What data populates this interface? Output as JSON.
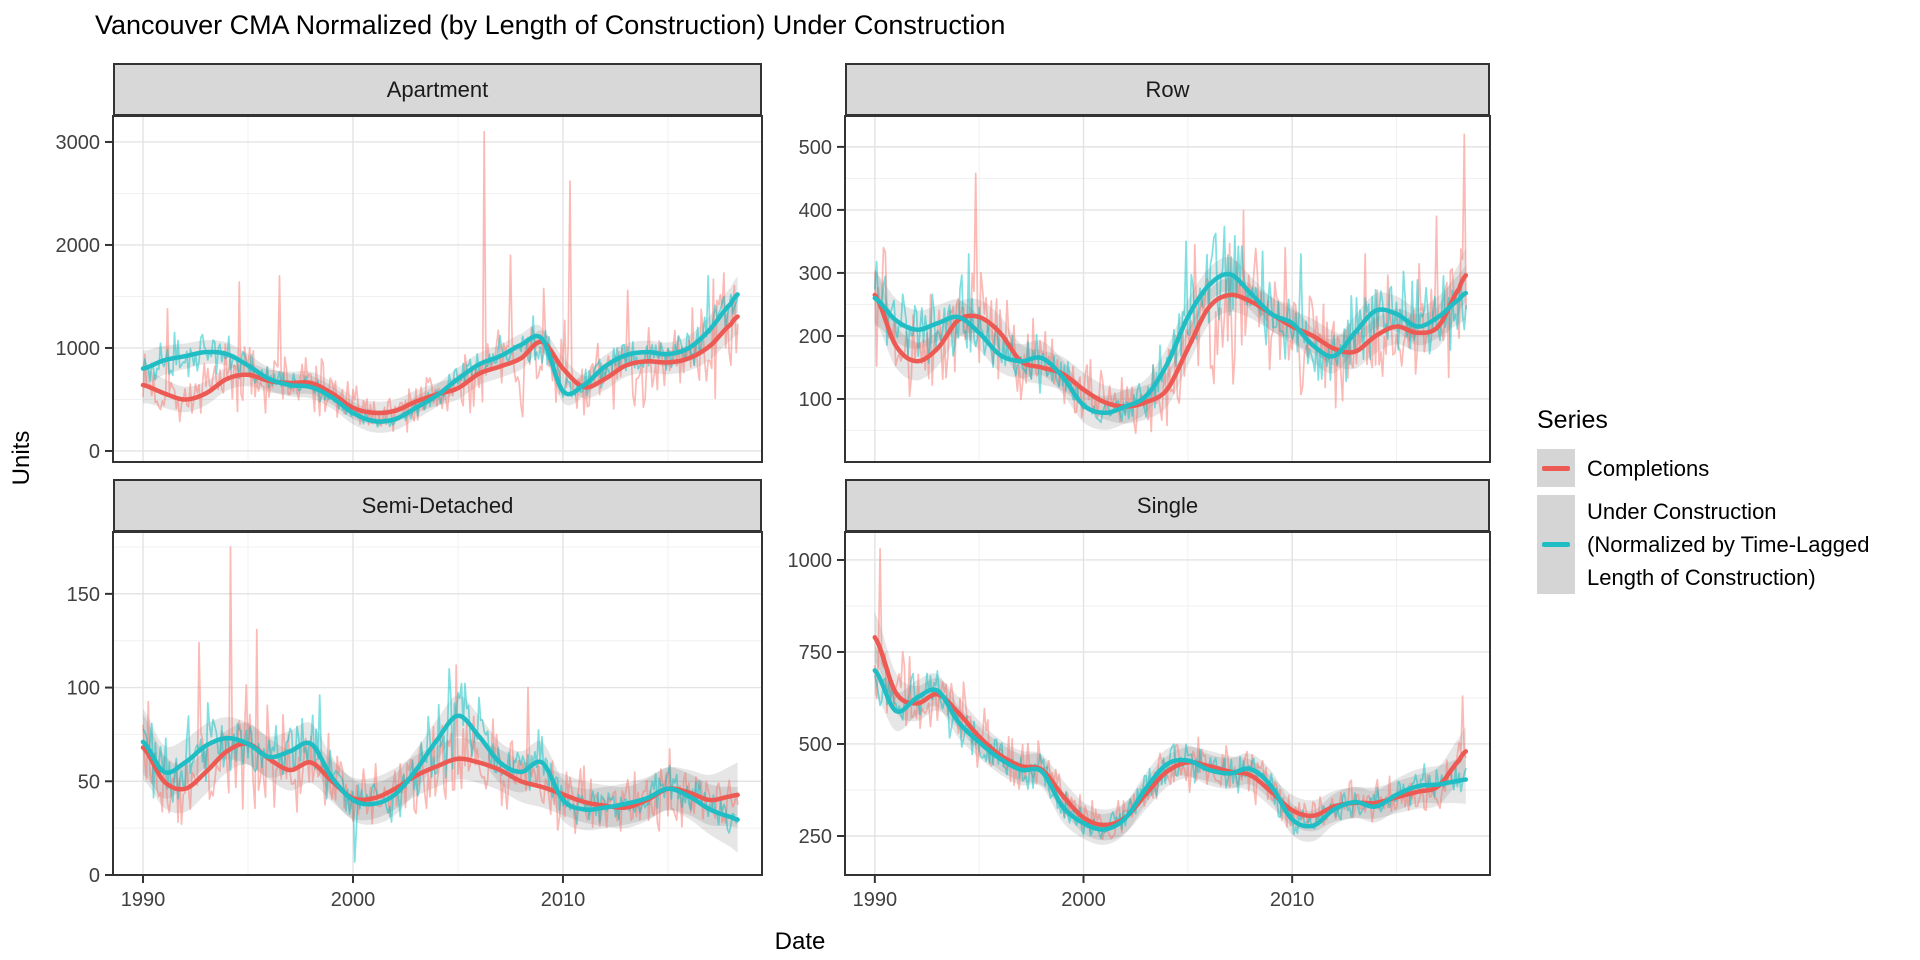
{
  "page": {
    "background": "#FFFFFF"
  },
  "chart_data": {
    "type": "line",
    "title": "Vancouver CMA Normalized (by Length of Construction) Under Construction",
    "xlabel": "Date",
    "ylabel": "Units",
    "grid": "on",
    "legend_position": "right",
    "x_ticks": [
      1990,
      2000,
      2010
    ],
    "x_minor_ticks": [
      1995,
      2005,
      2015
    ],
    "x_axis_range": [
      1988.57,
      2019.48
    ],
    "x_data_range": [
      1990,
      2018.35
    ],
    "years": [
      1990,
      1991,
      1992,
      1993,
      1994,
      1995,
      1996,
      1997,
      1998,
      1999,
      2000,
      2001,
      2002,
      2003,
      2004,
      2005,
      2006,
      2007,
      2008,
      2009,
      2010,
      2011,
      2012,
      2013,
      2014,
      2015,
      2016,
      2017,
      2018
    ],
    "series_colors": {
      "completions": "#ED5A54",
      "under_construction": "#20BEC4"
    },
    "raw_line_colors": {
      "completions": "#F8766D",
      "under_construction": "#00BFC4"
    },
    "ribbon_color": "rgba(90,90,90,0.15)",
    "legend": {
      "title": "Series",
      "entries": [
        {
          "label_lines": [
            "Completions"
          ],
          "color": "#ED5A54",
          "key_fill": "#D5D5D5"
        },
        {
          "label_lines": [
            "Under Construction",
            "(Normalized by Time-Lagged",
            "Length of Construction)"
          ],
          "color": "#20BEC4",
          "key_fill": "#D5D5D5"
        }
      ]
    },
    "facets": [
      {
        "label": "Apartment",
        "y_ticks": [
          0,
          1000,
          2000,
          3000
        ],
        "y_minor_ticks": [
          500,
          1500,
          2500
        ],
        "y_axis_range": [
          -107,
          3252
        ],
        "smooth": {
          "completions": [
            640,
            560,
            500,
            560,
            700,
            740,
            680,
            660,
            660,
            560,
            420,
            370,
            390,
            480,
            550,
            610,
            750,
            820,
            900,
            1060,
            800,
            620,
            700,
            830,
            870,
            860,
            900,
            1020,
            1230
          ],
          "under_construction": [
            800,
            880,
            920,
            960,
            940,
            830,
            700,
            640,
            620,
            520,
            370,
            290,
            310,
            420,
            540,
            700,
            840,
            920,
            1030,
            1090,
            580,
            640,
            820,
            930,
            960,
            940,
            1000,
            1180,
            1430
          ]
        },
        "noise_amp": {
          "completions": 0.45,
          "under_construction": 0.17
        },
        "ribbon_halfwidth": 110,
        "spikes": {
          "completions": [
            [
              1991.2,
              1380
            ],
            [
              1994.6,
              1640
            ],
            [
              1996.5,
              1700
            ],
            [
              2006.25,
              3100
            ],
            [
              2007.5,
              1900
            ],
            [
              2010.3,
              2620
            ],
            [
              2013.1,
              1560
            ],
            [
              2017.7,
              1730
            ]
          ],
          "under_construction": [
            [
              1991.5,
              1150
            ],
            [
              2008.6,
              1310
            ],
            [
              2016.9,
              1700
            ]
          ]
        }
      },
      {
        "label": "Row",
        "y_ticks": [
          100,
          200,
          300,
          400,
          500
        ],
        "y_minor_ticks": [
          50,
          150,
          250,
          350,
          450
        ],
        "y_axis_range": [
          0,
          549
        ],
        "smooth": {
          "completions": [
            265,
            185,
            160,
            180,
            225,
            230,
            205,
            160,
            150,
            140,
            115,
            95,
            88,
            95,
            115,
            180,
            245,
            265,
            255,
            235,
            215,
            200,
            180,
            175,
            200,
            215,
            205,
            215,
            275
          ],
          "under_construction": [
            260,
            225,
            210,
            220,
            230,
            205,
            170,
            160,
            165,
            135,
            90,
            78,
            88,
            105,
            155,
            230,
            280,
            298,
            268,
            235,
            220,
            185,
            168,
            205,
            240,
            235,
            215,
            230,
            258
          ]
        },
        "noise_amp": {
          "completions": 0.4,
          "under_construction": 0.26
        },
        "ribbon_halfwidth": 27,
        "spikes": {
          "completions": [
            [
              1990.4,
              340
            ],
            [
              1994.8,
              458
            ],
            [
              2005.3,
              345
            ],
            [
              2009.7,
              340
            ],
            [
              2013.5,
              330
            ],
            [
              2016.9,
              390
            ],
            [
              2018.25,
              520
            ]
          ],
          "under_construction": [
            [
              1994.5,
              330
            ],
            [
              2004.9,
              350
            ],
            [
              2010.4,
              330
            ]
          ]
        }
      },
      {
        "label": "Semi-Detached",
        "y_ticks": [
          0,
          50,
          100,
          150
        ],
        "y_minor_ticks": [
          25,
          75,
          125,
          175
        ],
        "y_axis_range": [
          0,
          183
        ],
        "smooth": {
          "completions": [
            68,
            50,
            46,
            55,
            66,
            70,
            62,
            56,
            60,
            50,
            41,
            41,
            46,
            53,
            58,
            62,
            60,
            56,
            50,
            47,
            43,
            39,
            37,
            36,
            40,
            46,
            44,
            40,
            42
          ],
          "under_construction": [
            71,
            55,
            60,
            69,
            73,
            70,
            63,
            66,
            70,
            52,
            40,
            38,
            43,
            56,
            72,
            85,
            74,
            60,
            55,
            60,
            40,
            35,
            36,
            38,
            41,
            46,
            42,
            35,
            31
          ]
        },
        "noise_amp": {
          "completions": 0.38,
          "under_construction": 0.27
        },
        "ribbon_halfwidth": 11,
        "spikes": {
          "completions": [
            [
              1992.7,
              124
            ],
            [
              1994.2,
              175
            ],
            [
              1995.4,
              131
            ],
            [
              2004.9,
              112
            ],
            [
              2008.3,
              100
            ]
          ],
          "under_construction": [
            [
              1998.4,
              96
            ],
            [
              2000.05,
              7
            ],
            [
              2004.6,
              110
            ]
          ]
        }
      },
      {
        "label": "Single",
        "y_ticks": [
          250,
          500,
          750,
          1000
        ],
        "y_minor_ticks": [
          375,
          625,
          875
        ],
        "y_axis_range": [
          144,
          1076
        ],
        "smooth": {
          "completions": [
            790,
            640,
            610,
            635,
            585,
            520,
            470,
            440,
            430,
            360,
            300,
            280,
            300,
            365,
            425,
            450,
            440,
            425,
            415,
            370,
            320,
            305,
            330,
            340,
            340,
            355,
            370,
            385,
            455
          ],
          "under_construction": [
            700,
            590,
            625,
            645,
            560,
            505,
            460,
            430,
            425,
            330,
            285,
            268,
            298,
            380,
            445,
            455,
            430,
            420,
            432,
            385,
            295,
            278,
            322,
            342,
            330,
            362,
            385,
            390,
            400
          ]
        },
        "noise_amp": {
          "completions": 0.15,
          "under_construction": 0.11
        },
        "ribbon_halfwidth": 42,
        "spikes": {
          "completions": [
            [
              1990.25,
              1030
            ],
            [
              2018.2,
              630
            ]
          ],
          "under_construction": []
        }
      }
    ]
  }
}
